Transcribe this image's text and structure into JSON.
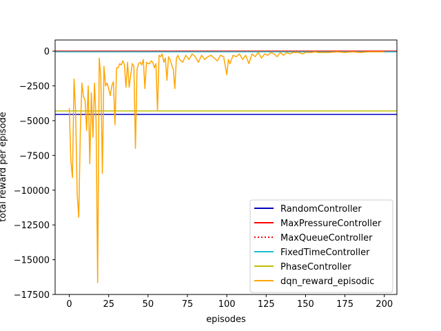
{
  "chart_data": {
    "type": "line",
    "title": "",
    "xlabel": "episodes",
    "ylabel": "total reward per episode",
    "xlim": [
      -9,
      208
    ],
    "ylim": [
      -17500,
      800
    ],
    "xticks": [
      0,
      25,
      50,
      75,
      100,
      125,
      150,
      175,
      200
    ],
    "yticks": [
      0,
      -2500,
      -5000,
      -7500,
      -10000,
      -12500,
      -15000,
      -17500
    ],
    "xtick_labels": [
      "0",
      "25",
      "50",
      "75",
      "100",
      "125",
      "150",
      "175",
      "200"
    ],
    "ytick_labels": [
      "0",
      "−2500",
      "−5000",
      "−7500",
      "−10000",
      "−12500",
      "−15000",
      "−17500"
    ],
    "grid": false,
    "legend_position": "lower-right",
    "series": [
      {
        "name": "RandomController",
        "kind": "hline",
        "y": -4550,
        "color": "#0000bf",
        "style": "solid"
      },
      {
        "name": "MaxPressureController",
        "kind": "hline",
        "y": 0,
        "color": "#ff0000",
        "style": "solid"
      },
      {
        "name": "MaxQueueController",
        "kind": "hline",
        "y": 0,
        "color": "#ff0000",
        "style": "dotted"
      },
      {
        "name": "FixedTimeController",
        "kind": "hline",
        "y": -50,
        "color": "#17becf",
        "style": "solid"
      },
      {
        "name": "PhaseController",
        "kind": "hline",
        "y": -4300,
        "color": "#bfbf00",
        "style": "solid"
      },
      {
        "name": "dqn_reward_episodic",
        "kind": "line",
        "color": "#ffa500",
        "style": "solid",
        "x": [
          0,
          1,
          2,
          3,
          4,
          5,
          6,
          7,
          8,
          9,
          10,
          11,
          12,
          13,
          14,
          15,
          16,
          17,
          18,
          19,
          20,
          21,
          22,
          23,
          24,
          25,
          26,
          27,
          28,
          29,
          30,
          31,
          32,
          33,
          34,
          35,
          36,
          37,
          38,
          39,
          40,
          41,
          42,
          43,
          44,
          45,
          46,
          47,
          48,
          49,
          50,
          51,
          52,
          53,
          54,
          55,
          56,
          57,
          58,
          59,
          60,
          61,
          62,
          63,
          64,
          65,
          66,
          67,
          68,
          69,
          70,
          72,
          74,
          76,
          78,
          80,
          82,
          84,
          86,
          88,
          90,
          92,
          94,
          96,
          98,
          100,
          101,
          102,
          104,
          106,
          108,
          110,
          112,
          114,
          116,
          118,
          120,
          122,
          124,
          126,
          128,
          130,
          132,
          134,
          136,
          138,
          140,
          142,
          144,
          146,
          148,
          150,
          152,
          154,
          156,
          158,
          160,
          165,
          170,
          175,
          180,
          185,
          190,
          195,
          200
        ],
        "y": [
          -4100,
          -7900,
          -9100,
          -2000,
          -4300,
          -10300,
          -11950,
          -5800,
          -2300,
          -3300,
          -3500,
          -5700,
          -2500,
          -8100,
          -3000,
          -6200,
          -2300,
          -5000,
          -16650,
          -500,
          -1800,
          -8800,
          -1100,
          -2500,
          -2300,
          -2700,
          -3200,
          -2500,
          -2200,
          -5300,
          -1200,
          -1200,
          -900,
          -1000,
          -700,
          -1000,
          -2600,
          -800,
          -2600,
          -1700,
          -900,
          -1100,
          -7000,
          -1300,
          -900,
          -800,
          -1000,
          -600,
          -2700,
          -800,
          -900,
          -900,
          -700,
          -800,
          -1200,
          -900,
          -4300,
          -300,
          -400,
          -200,
          -800,
          -500,
          -2100,
          -400,
          -600,
          -1000,
          -1300,
          -2700,
          -500,
          -300,
          -600,
          -800,
          -300,
          -600,
          -200,
          -400,
          -800,
          -300,
          -600,
          -400,
          -300,
          -500,
          -700,
          -300,
          -400,
          -1700,
          -600,
          -900,
          -300,
          -400,
          -200,
          -600,
          -300,
          -900,
          -200,
          -400,
          -100,
          -500,
          -200,
          -300,
          -100,
          -200,
          -400,
          -100,
          -300,
          -100,
          -200,
          -100,
          -100,
          -100,
          -200,
          -100,
          -100,
          -100,
          -50,
          -100,
          -100,
          -100,
          -50,
          -100,
          -50,
          -100,
          -50,
          -50,
          -50
        ]
      }
    ]
  }
}
